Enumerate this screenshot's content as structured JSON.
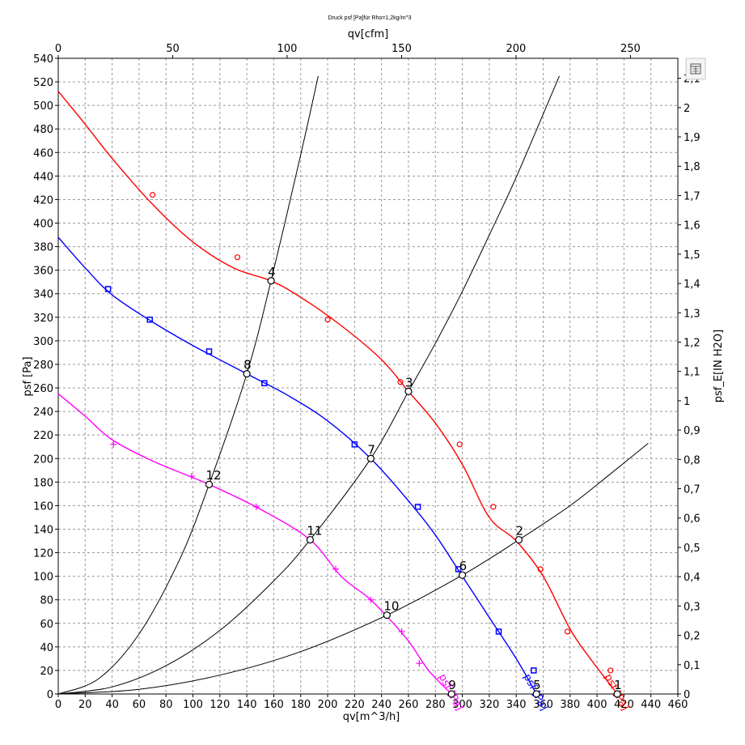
{
  "chart_data": {
    "type": "line",
    "title": "Druck psf  [Pa]für Rho=1,2kg/m^3",
    "xlabel": "qv[m^3/h]",
    "x2label": "qv[cfm]",
    "ylabel": "psf [Pa]",
    "y2label": "psf_E[IN H2O]",
    "xlim": [
      0,
      460
    ],
    "ylim": [
      0,
      540
    ],
    "x2lim": [
      0,
      270.7
    ],
    "y2lim": [
      0,
      2.168
    ],
    "grid": true,
    "x_ticks": [
      "0",
      "20",
      "40",
      "60",
      "80",
      "100",
      "120",
      "140",
      "160",
      "180",
      "200",
      "220",
      "240",
      "260",
      "280",
      "300",
      "320",
      "340",
      "360",
      "380",
      "400",
      "420",
      "440",
      "460"
    ],
    "y_ticks": [
      "0",
      "20",
      "40",
      "60",
      "80",
      "100",
      "120",
      "140",
      "160",
      "180",
      "200",
      "220",
      "240",
      "260",
      "280",
      "300",
      "320",
      "340",
      "360",
      "380",
      "400",
      "420",
      "440",
      "460",
      "480",
      "500",
      "520",
      "540"
    ],
    "x2_ticks": [
      "0",
      "50",
      "100",
      "150",
      "200",
      "250"
    ],
    "x2_tick_values": [
      0,
      50,
      100,
      150,
      200,
      250
    ],
    "y2_ticks": [
      "0",
      "0,1",
      "0,2",
      "0,3",
      "0,4",
      "0,5",
      "0,6",
      "0,7",
      "0,8",
      "0,9",
      "1",
      "1,1",
      "1,2",
      "1,3",
      "1,4",
      "1,5",
      "1,6",
      "1,7",
      "1,8",
      "1,9",
      "2",
      "2,1"
    ],
    "y2_tick_values": [
      0,
      0.1,
      0.2,
      0.3,
      0.4,
      0.5,
      0.6,
      0.7,
      0.8,
      0.9,
      1,
      1.1,
      1.2,
      1.3,
      1.4,
      1.5,
      1.6,
      1.7,
      1.8,
      1.9,
      2,
      2.1
    ],
    "series": [
      {
        "label": "psf [Pa]",
        "color": "#ff0000",
        "marker": "circle",
        "x": [
          0,
          20,
          40,
          70,
          100,
          130,
          158,
          180,
          210,
          240,
          260,
          280,
          300,
          320,
          340,
          360,
          380,
          395,
          405,
          415
        ],
        "y": [
          512,
          484,
          455,
          416,
          384,
          362,
          351,
          337,
          313,
          284,
          257,
          230,
          195,
          150,
          130,
          100,
          55,
          30,
          15,
          0
        ],
        "markers_x": [
          70,
          133,
          200,
          254,
          298,
          323,
          358,
          378,
          410
        ],
        "markers_y": [
          424,
          371,
          318,
          265,
          212,
          159,
          106,
          53,
          20
        ]
      },
      {
        "label": "psf [Pa]",
        "color": "#0000ff",
        "marker": "square",
        "x": [
          0,
          20,
          40,
          70,
          100,
          140,
          170,
          200,
          232,
          260,
          280,
          300,
          320,
          340,
          355
        ],
        "y": [
          388,
          362,
          339,
          316,
          296,
          272,
          254,
          232,
          200,
          164,
          135,
          100,
          65,
          30,
          0
        ],
        "markers_x": [
          37,
          68,
          112,
          153,
          220,
          267,
          297,
          327,
          353
        ],
        "markers_y": [
          344,
          318,
          291,
          264,
          212,
          159,
          106,
          53,
          20
        ]
      },
      {
        "label": "psf [Pa]",
        "color": "#ff00ff",
        "marker": "plus",
        "x": [
          0,
          20,
          40,
          70,
          112,
          150,
          187,
          210,
          230,
          244,
          260,
          275,
          292
        ],
        "y": [
          255,
          236,
          216,
          198,
          178,
          157,
          131,
          100,
          82,
          66,
          45,
          20,
          0
        ],
        "markers_x": [
          41,
          99,
          147,
          206,
          232,
          255,
          268
        ],
        "markers_y": [
          212,
          185,
          159,
          106,
          80,
          53,
          26
        ]
      }
    ],
    "system_curves": [
      {
        "x": [
          0,
          30,
          60,
          90,
          112,
          140,
          158,
          180,
          193
        ],
        "y": [
          0,
          13,
          51,
          114,
          178,
          272,
          351,
          458,
          525
        ]
      },
      {
        "x": [
          0,
          40,
          80,
          120,
          160,
          187,
          232,
          260,
          280,
          300,
          320,
          340,
          372
        ],
        "y": [
          0,
          6,
          24,
          54,
          96,
          131,
          200,
          257,
          298,
          342,
          390,
          439,
          525
        ]
      },
      {
        "x": [
          0,
          60,
          120,
          180,
          244,
          300,
          342,
          380,
          410,
          438
        ],
        "y": [
          0,
          4,
          16,
          36,
          67,
          101,
          131,
          160,
          187,
          213
        ]
      }
    ],
    "operating_points": [
      {
        "label": "1",
        "x": 415,
        "y": 0
      },
      {
        "label": "2",
        "x": 342,
        "y": 131
      },
      {
        "label": "3",
        "x": 260,
        "y": 257
      },
      {
        "label": "4",
        "x": 158,
        "y": 351
      },
      {
        "label": "5",
        "x": 355,
        "y": 0
      },
      {
        "label": "6",
        "x": 300,
        "y": 101
      },
      {
        "label": "7",
        "x": 232,
        "y": 200
      },
      {
        "label": "8",
        "x": 140,
        "y": 272
      },
      {
        "label": "9",
        "x": 292,
        "y": 0
      },
      {
        "label": "10",
        "x": 244,
        "y": 67
      },
      {
        "label": "11",
        "x": 187,
        "y": 131
      },
      {
        "label": "12",
        "x": 112,
        "y": 178
      }
    ]
  },
  "export_button": {
    "icon": "export-icon"
  }
}
